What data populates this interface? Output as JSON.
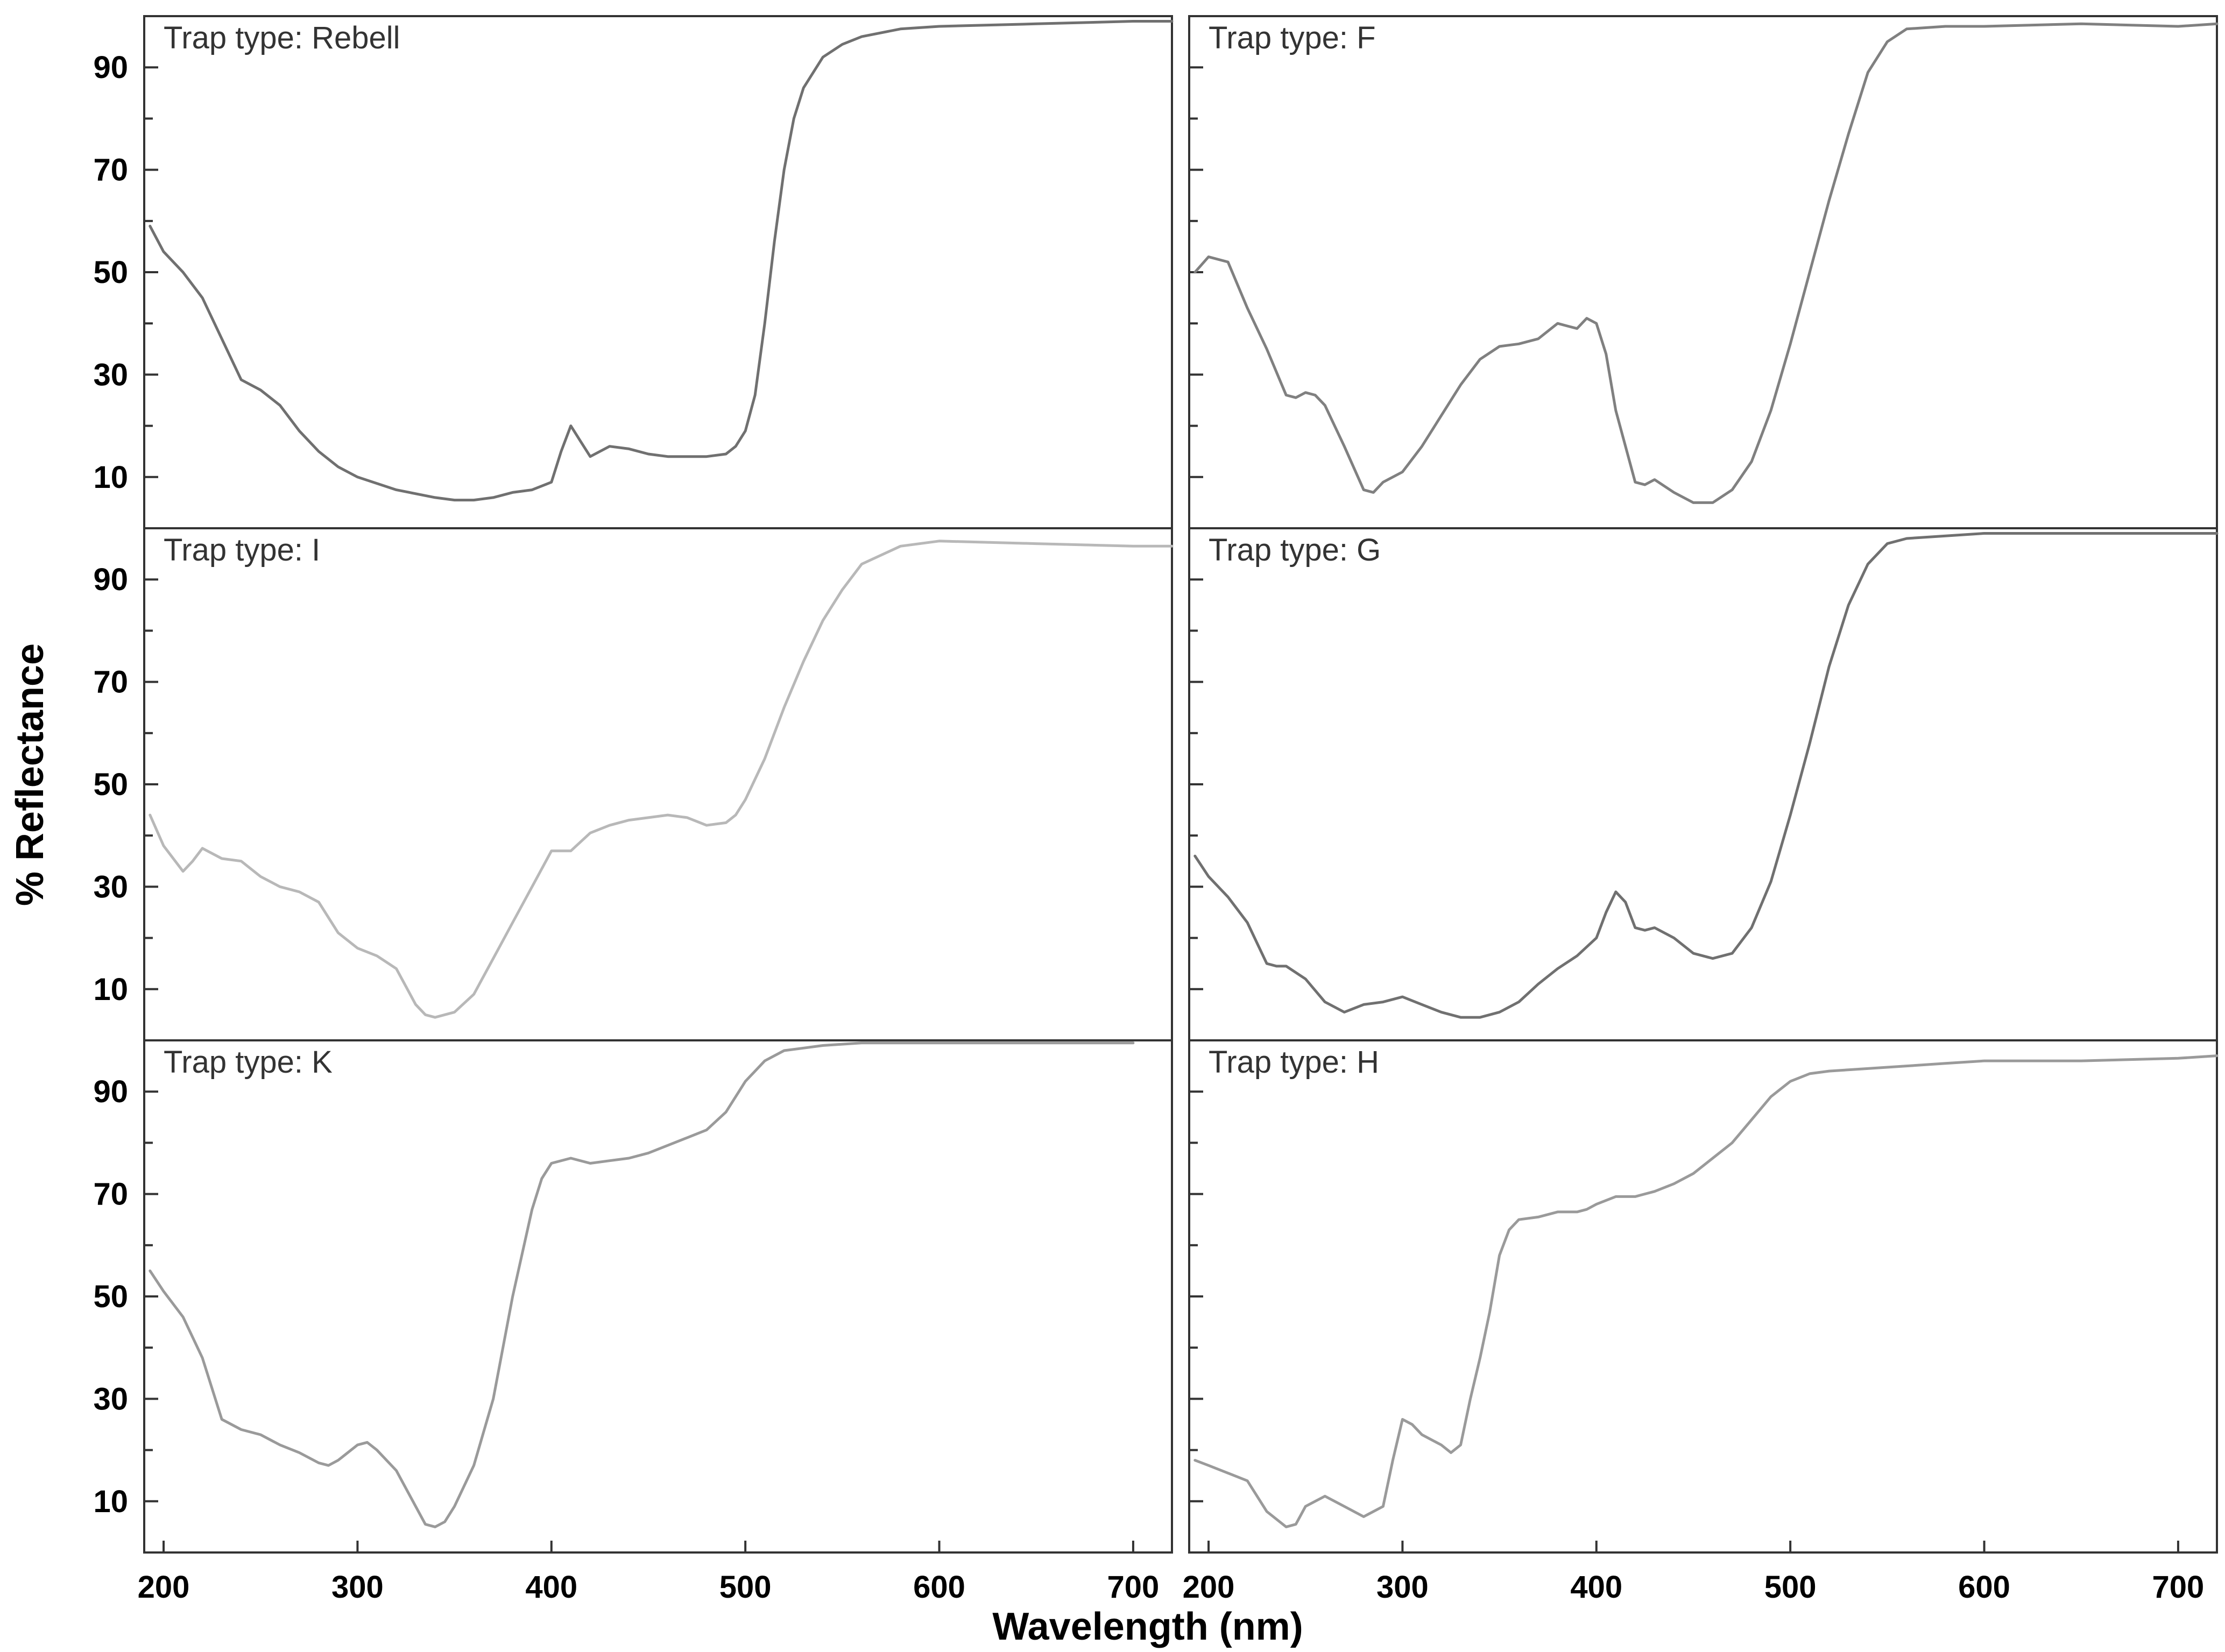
{
  "chart_data": {
    "type": "line",
    "xlabel": "Wavelength (nm)",
    "ylabel": "% Reflectance",
    "xlim": [
      190,
      720
    ],
    "ylim": [
      0,
      100
    ],
    "xticks": [
      200,
      300,
      400,
      500,
      600,
      700
    ],
    "yticks": [
      10,
      30,
      50,
      70,
      90
    ],
    "grid": false,
    "panels": [
      {
        "label": "Trap type: Rebell",
        "color": "#707070",
        "x": [
          193,
          200,
          210,
          220,
          230,
          240,
          250,
          260,
          270,
          280,
          290,
          300,
          320,
          340,
          350,
          360,
          370,
          380,
          390,
          400,
          405,
          410,
          415,
          420,
          425,
          430,
          440,
          450,
          460,
          470,
          480,
          490,
          495,
          500,
          505,
          510,
          515,
          520,
          525,
          530,
          540,
          550,
          560,
          580,
          600,
          650,
          700,
          720
        ],
        "y": [
          59,
          54,
          50,
          45,
          37,
          29,
          27,
          24,
          19,
          15,
          12,
          10,
          7.5,
          6,
          5.5,
          5.5,
          6,
          7,
          7.5,
          9,
          15,
          20,
          17,
          14,
          15,
          16,
          15.5,
          14.5,
          14,
          14,
          14,
          14.5,
          16,
          19,
          26,
          40,
          56,
          70,
          80,
          86,
          92,
          94.5,
          96,
          97.5,
          98,
          98.5,
          99,
          99
        ]
      },
      {
        "label": "Trap type: F",
        "color": "#808080",
        "x": [
          193,
          200,
          210,
          220,
          230,
          240,
          245,
          250,
          255,
          260,
          270,
          280,
          285,
          290,
          300,
          310,
          320,
          330,
          340,
          350,
          360,
          370,
          380,
          385,
          390,
          395,
          400,
          405,
          410,
          420,
          425,
          430,
          440,
          450,
          460,
          470,
          480,
          490,
          500,
          510,
          520,
          530,
          540,
          550,
          560,
          580,
          600,
          650,
          700,
          720
        ],
        "y": [
          50,
          53,
          52,
          43,
          35,
          26,
          25.5,
          26.5,
          26,
          24,
          16,
          7.5,
          7,
          9,
          11,
          16,
          22,
          28,
          33,
          35.5,
          36,
          37,
          40,
          39.5,
          39,
          41,
          40,
          34,
          23,
          9,
          8.5,
          9.5,
          7,
          5,
          5,
          7.5,
          13,
          23,
          36,
          50,
          64,
          77,
          89,
          95,
          97.5,
          98,
          98,
          98.5,
          98,
          98.5
        ]
      },
      {
        "label": "Trap type: I",
        "color": "#b8b8b8",
        "x": [
          193,
          200,
          210,
          215,
          220,
          230,
          240,
          250,
          260,
          270,
          280,
          290,
          300,
          310,
          320,
          330,
          335,
          340,
          350,
          360,
          370,
          380,
          390,
          400,
          410,
          420,
          430,
          440,
          450,
          460,
          470,
          480,
          490,
          495,
          500,
          510,
          520,
          530,
          540,
          550,
          560,
          580,
          600,
          650,
          700,
          720
        ],
        "y": [
          44,
          38,
          33,
          35,
          37.5,
          35.5,
          35,
          32,
          30,
          29,
          27,
          21,
          18,
          16.5,
          14,
          7,
          5,
          4.5,
          5.5,
          9,
          16,
          23,
          30,
          37,
          37,
          40.5,
          42,
          43,
          43.5,
          44,
          43.5,
          42,
          42.5,
          44,
          47,
          55,
          65,
          74,
          82,
          88,
          93,
          96.5,
          97.5,
          97,
          96.5,
          96.5
        ]
      },
      {
        "label": "Trap type: G",
        "color": "#707070",
        "x": [
          193,
          200,
          210,
          220,
          230,
          235,
          240,
          250,
          260,
          270,
          280,
          290,
          300,
          310,
          320,
          330,
          340,
          350,
          360,
          370,
          380,
          390,
          400,
          405,
          410,
          415,
          420,
          425,
          430,
          440,
          450,
          460,
          470,
          480,
          490,
          500,
          510,
          520,
          530,
          540,
          550,
          560,
          580,
          600,
          650,
          700,
          720
        ],
        "y": [
          36,
          32,
          28,
          23,
          15,
          14.5,
          14.5,
          12,
          7.5,
          5.5,
          7,
          7.5,
          8.5,
          7,
          5.5,
          4.5,
          4.5,
          5.5,
          7.5,
          11,
          14,
          16.5,
          20,
          25,
          29,
          27,
          22,
          21.5,
          22,
          20,
          17,
          16,
          17,
          22,
          31,
          44,
          58,
          73,
          85,
          93,
          97,
          98,
          98.5,
          99,
          99,
          99,
          99
        ]
      },
      {
        "label": "Trap type: K",
        "color": "#9a9a9a",
        "x": [
          193,
          200,
          210,
          220,
          230,
          240,
          250,
          260,
          270,
          280,
          285,
          290,
          300,
          305,
          310,
          320,
          330,
          335,
          340,
          345,
          350,
          360,
          370,
          380,
          390,
          395,
          400,
          410,
          420,
          430,
          440,
          450,
          460,
          470,
          480,
          490,
          495,
          500,
          510,
          520,
          530,
          540,
          560,
          580,
          600,
          650,
          700
        ],
        "y": [
          55,
          51,
          46,
          38,
          26,
          24,
          23,
          21,
          19.5,
          17.5,
          17,
          18,
          21,
          21.5,
          20,
          16,
          9,
          5.5,
          5,
          6,
          9,
          17,
          30,
          50,
          67,
          73,
          76,
          77,
          76,
          76.5,
          77,
          78,
          79.5,
          81,
          82.5,
          86,
          89,
          92,
          96,
          98,
          98.5,
          99,
          99.5,
          99.5,
          99.5,
          99.5,
          99.5
        ]
      },
      {
        "label": "Trap type: H",
        "color": "#9a9a9a",
        "x": [
          193,
          200,
          210,
          220,
          230,
          240,
          245,
          250,
          255,
          260,
          270,
          280,
          290,
          295,
          300,
          305,
          310,
          320,
          325,
          330,
          335,
          340,
          345,
          350,
          355,
          360,
          370,
          380,
          390,
          395,
          400,
          410,
          420,
          430,
          440,
          450,
          460,
          470,
          480,
          490,
          500,
          510,
          520,
          540,
          560,
          580,
          600,
          650,
          700,
          720
        ],
        "y": [
          18,
          17,
          15.5,
          14,
          8,
          5,
          5.5,
          9,
          10,
          11,
          9,
          7,
          9,
          18,
          26,
          25,
          23,
          21,
          19.5,
          21,
          30,
          38,
          47,
          58,
          63,
          65,
          65.5,
          66.5,
          66.5,
          67,
          68,
          69.5,
          69.5,
          70.5,
          72,
          74,
          77,
          80,
          84.5,
          89,
          92,
          93.5,
          94,
          94.5,
          95,
          95.5,
          96,
          96,
          96.5,
          97
        ]
      }
    ]
  }
}
